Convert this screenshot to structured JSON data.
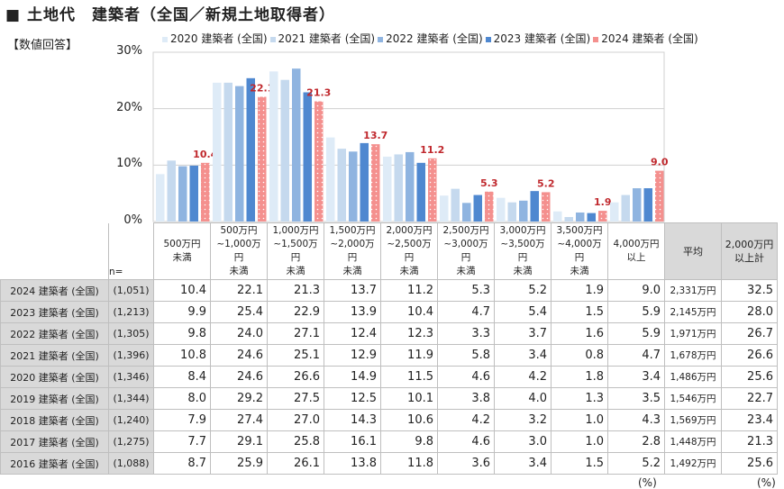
{
  "title": "■ 土地代　建築者（全国／新規土地取得者）",
  "subtitle": "【数値回答】",
  "header": {
    "n_label": "n=",
    "avg": "平均",
    "over2000": "2,000万円\n以上計",
    "unit_left": "(%)",
    "unit_right": "(%)"
  },
  "chart_data": {
    "type": "bar",
    "ylim": [
      0,
      30
    ],
    "yticks": [
      "0%",
      "10%",
      "20%",
      "30%"
    ],
    "grid": true,
    "legend_position": "top",
    "categories": [
      "500万円\n未満",
      "500万円\n~1,000万\n円\n未満",
      "1,000万円\n~1,500万\n円\n未満",
      "1,500万円\n~2,000万\n円\n未満",
      "2,000万円\n~2,500万\n円\n未満",
      "2,500万円\n~3,000万\n円\n未満",
      "3,000万円\n~3,500万\n円\n未満",
      "3,500万円\n~4,000万\n円\n未満",
      "4,000万円\n以上"
    ],
    "series": [
      {
        "name": "2020 建築者 (全国)",
        "color": "#deebf7",
        "values": [
          8.4,
          24.6,
          26.6,
          14.9,
          11.5,
          4.6,
          4.2,
          1.8,
          3.4
        ]
      },
      {
        "name": "2021 建築者 (全国)",
        "color": "#c5d9ee",
        "values": [
          10.8,
          24.6,
          25.1,
          12.9,
          11.9,
          5.8,
          3.4,
          0.8,
          4.7
        ]
      },
      {
        "name": "2022 建築者 (全国)",
        "color": "#8fb4e0",
        "values": [
          9.8,
          24.0,
          27.1,
          12.4,
          12.3,
          3.3,
          3.7,
          1.6,
          5.9
        ]
      },
      {
        "name": "2023 建築者 (全国)",
        "color": "#4f88d0",
        "values": [
          9.9,
          25.4,
          22.9,
          13.9,
          10.4,
          4.7,
          5.4,
          1.5,
          5.9
        ]
      },
      {
        "name": "2024 建築者 (全国)",
        "color": "#f4908e",
        "values": [
          10.4,
          22.1,
          21.3,
          13.7,
          11.2,
          5.3,
          5.2,
          1.9,
          9.0
        ],
        "labels": [
          "10.4",
          "22.1",
          "21.3",
          "13.7",
          "11.2",
          "5.3",
          "5.2",
          "1.9",
          "9.0"
        ],
        "label_color": "#c0282d"
      }
    ]
  },
  "table": [
    {
      "label": "2024 建築者 (全国)",
      "n": "(1,051)",
      "vals": [
        "10.4",
        "22.1",
        "21.3",
        "13.7",
        "11.2",
        "5.3",
        "5.2",
        "1.9",
        "9.0"
      ],
      "avg": "2,331万円",
      "over": "32.5"
    },
    {
      "label": "2023 建築者 (全国)",
      "n": "(1,213)",
      "vals": [
        "9.9",
        "25.4",
        "22.9",
        "13.9",
        "10.4",
        "4.7",
        "5.4",
        "1.5",
        "5.9"
      ],
      "avg": "2,145万円",
      "over": "28.0"
    },
    {
      "label": "2022 建築者 (全国)",
      "n": "(1,305)",
      "vals": [
        "9.8",
        "24.0",
        "27.1",
        "12.4",
        "12.3",
        "3.3",
        "3.7",
        "1.6",
        "5.9"
      ],
      "avg": "1,971万円",
      "over": "26.7"
    },
    {
      "label": "2021 建築者 (全国)",
      "n": "(1,396)",
      "vals": [
        "10.8",
        "24.6",
        "25.1",
        "12.9",
        "11.9",
        "5.8",
        "3.4",
        "0.8",
        "4.7"
      ],
      "avg": "1,678万円",
      "over": "26.6"
    },
    {
      "label": "2020 建築者 (全国)",
      "n": "(1,346)",
      "vals": [
        "8.4",
        "24.6",
        "26.6",
        "14.9",
        "11.5",
        "4.6",
        "4.2",
        "1.8",
        "3.4"
      ],
      "avg": "1,486万円",
      "over": "25.6"
    },
    {
      "label": "2019 建築者 (全国)",
      "n": "(1,344)",
      "vals": [
        "8.0",
        "29.2",
        "27.5",
        "12.5",
        "10.1",
        "3.8",
        "4.0",
        "1.3",
        "3.5"
      ],
      "avg": "1,546万円",
      "over": "22.7"
    },
    {
      "label": "2018 建築者 (全国)",
      "n": "(1,240)",
      "vals": [
        "7.9",
        "27.4",
        "27.0",
        "14.3",
        "10.6",
        "4.2",
        "3.2",
        "1.0",
        "4.3"
      ],
      "avg": "1,569万円",
      "over": "23.4"
    },
    {
      "label": "2017 建築者 (全国)",
      "n": "(1,275)",
      "vals": [
        "7.7",
        "29.1",
        "25.8",
        "16.1",
        "9.8",
        "4.6",
        "3.0",
        "1.0",
        "2.8"
      ],
      "avg": "1,448万円",
      "over": "21.3"
    },
    {
      "label": "2016 建築者 (全国)",
      "n": "(1,088)",
      "vals": [
        "8.7",
        "25.9",
        "26.1",
        "13.8",
        "11.8",
        "3.6",
        "3.4",
        "1.5",
        "5.2"
      ],
      "avg": "1,492万円",
      "over": "25.6"
    }
  ]
}
